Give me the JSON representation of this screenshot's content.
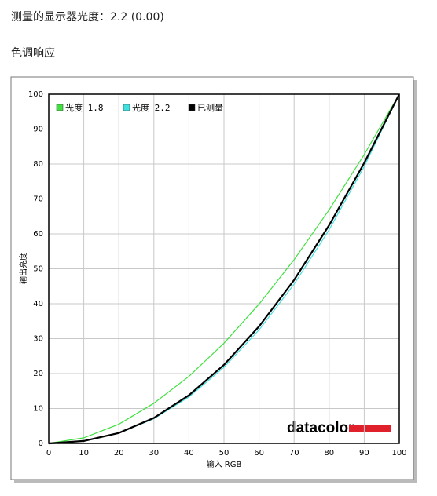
{
  "header": {
    "title": "测量的显示器光度：2.2 (0.00)",
    "section": "色调响应"
  },
  "chart_data": {
    "type": "line",
    "xlabel": "输入 RGB",
    "ylabel": "输出亮度",
    "logo": "datacolor",
    "x": [
      0,
      10,
      20,
      30,
      40,
      50,
      60,
      70,
      80,
      90,
      100
    ],
    "series": [
      {
        "name": "光度 1.8",
        "color": "#40e040",
        "values": [
          0,
          1.6,
          5.5,
          11.5,
          19.2,
          28.7,
          39.9,
          52.6,
          66.9,
          82.7,
          100
        ]
      },
      {
        "name": "光度 2.2",
        "color": "#40e0e0",
        "values": [
          0,
          0.6,
          2.9,
          7.1,
          13.3,
          21.8,
          32.5,
          45.6,
          61.2,
          79.3,
          100
        ]
      },
      {
        "name": "已测量",
        "color": "#000000",
        "values": [
          0,
          0.7,
          3.0,
          7.3,
          13.8,
          22.5,
          33.5,
          46.8,
          62.5,
          80.3,
          100
        ]
      }
    ],
    "xlim": [
      0,
      100
    ],
    "ylim": [
      0,
      100
    ],
    "xticks": [
      0,
      10,
      20,
      30,
      40,
      50,
      60,
      70,
      80,
      90,
      100
    ],
    "yticks": [
      0,
      10,
      20,
      30,
      40,
      50,
      60,
      70,
      80,
      90,
      100
    ],
    "grid": true,
    "legend": "top-left"
  }
}
